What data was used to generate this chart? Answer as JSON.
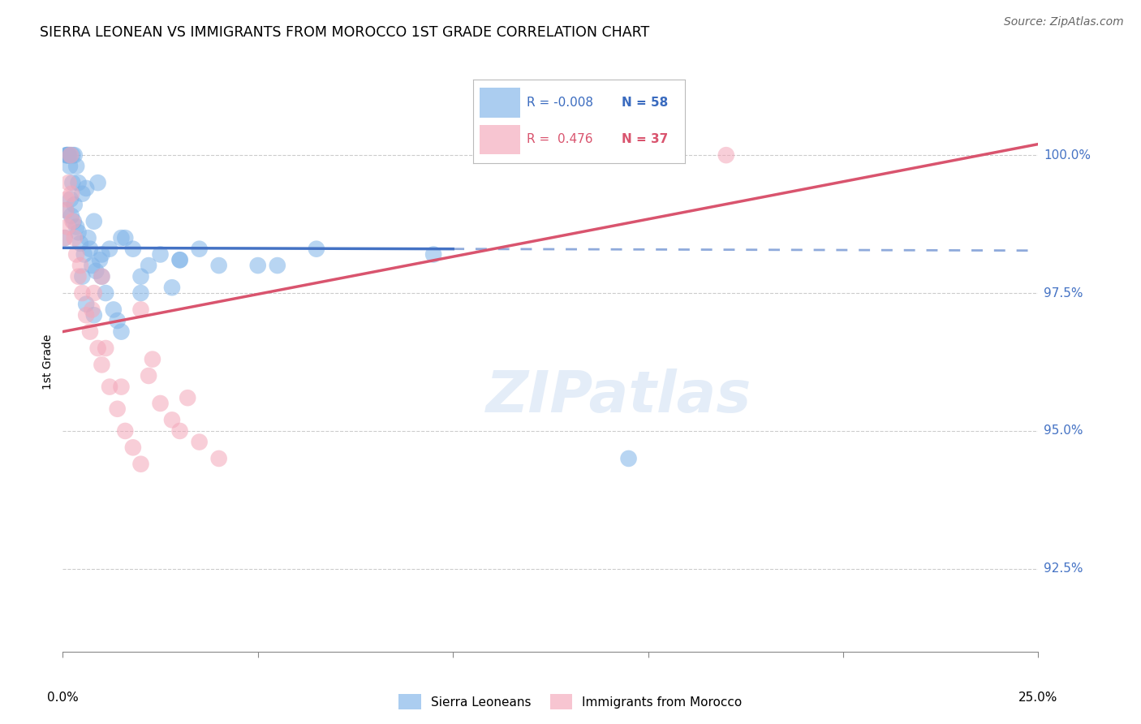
{
  "title": "SIERRA LEONEAN VS IMMIGRANTS FROM MOROCCO 1ST GRADE CORRELATION CHART",
  "source": "Source: ZipAtlas.com",
  "ylabel": "1st Grade",
  "yticks": [
    92.5,
    95.0,
    97.5,
    100.0
  ],
  "ytick_labels": [
    "92.5%",
    "95.0%",
    "97.5%",
    "100.0%"
  ],
  "xlim": [
    0.0,
    25.0
  ],
  "ylim": [
    91.0,
    101.5
  ],
  "legend_r_blue": "-0.008",
  "legend_n_blue": "58",
  "legend_r_pink": "0.476",
  "legend_n_pink": "37",
  "blue_color": "#7fb3e8",
  "pink_color": "#f4a7b9",
  "blue_line_color": "#4472c4",
  "pink_line_color": "#d9546e",
  "blue_line_y0": 98.32,
  "blue_line_y25": 98.27,
  "pink_line_y0": 96.8,
  "pink_line_y25": 100.2,
  "blue_solid_end": 10.0,
  "blue_x": [
    0.05,
    0.08,
    0.1,
    0.12,
    0.15,
    0.18,
    0.2,
    0.22,
    0.25,
    0.28,
    0.3,
    0.35,
    0.4,
    0.45,
    0.5,
    0.55,
    0.6,
    0.65,
    0.7,
    0.75,
    0.8,
    0.85,
    0.9,
    0.95,
    1.0,
    1.1,
    1.2,
    1.3,
    1.4,
    1.5,
    1.6,
    1.8,
    2.0,
    2.2,
    2.5,
    2.8,
    3.0,
    3.5,
    4.0,
    5.0,
    0.1,
    0.15,
    0.2,
    0.25,
    0.3,
    0.35,
    0.4,
    0.5,
    0.6,
    0.8,
    1.0,
    1.5,
    2.0,
    3.0,
    5.5,
    6.5,
    9.5,
    14.5
  ],
  "blue_y": [
    98.5,
    99.0,
    100.0,
    100.0,
    100.0,
    99.8,
    99.2,
    98.9,
    99.5,
    98.8,
    99.1,
    98.7,
    98.6,
    98.4,
    99.3,
    98.2,
    99.4,
    98.5,
    98.3,
    98.0,
    98.8,
    97.9,
    99.5,
    98.1,
    97.8,
    97.5,
    98.3,
    97.2,
    97.0,
    96.8,
    98.5,
    98.3,
    97.5,
    98.0,
    98.2,
    97.6,
    98.1,
    98.3,
    98.0,
    98.0,
    100.0,
    100.0,
    100.0,
    100.0,
    100.0,
    99.8,
    99.5,
    97.8,
    97.3,
    97.1,
    98.2,
    98.5,
    97.8,
    98.1,
    98.0,
    98.3,
    98.2,
    94.5
  ],
  "pink_x": [
    0.05,
    0.08,
    0.1,
    0.15,
    0.2,
    0.25,
    0.3,
    0.35,
    0.4,
    0.5,
    0.6,
    0.7,
    0.8,
    0.9,
    1.0,
    1.2,
    1.4,
    1.6,
    1.8,
    2.0,
    2.2,
    2.5,
    2.8,
    3.0,
    3.5,
    4.0,
    0.12,
    0.22,
    0.45,
    0.75,
    1.1,
    1.5,
    2.3,
    3.2,
    17.0,
    1.0,
    2.0
  ],
  "pink_y": [
    98.5,
    99.0,
    99.2,
    99.5,
    100.0,
    98.8,
    98.5,
    98.2,
    97.8,
    97.5,
    97.1,
    96.8,
    97.5,
    96.5,
    96.2,
    95.8,
    95.4,
    95.0,
    94.7,
    94.4,
    96.0,
    95.5,
    95.2,
    95.0,
    94.8,
    94.5,
    98.7,
    99.3,
    98.0,
    97.2,
    96.5,
    95.8,
    96.3,
    95.6,
    100.0,
    97.8,
    97.2
  ]
}
